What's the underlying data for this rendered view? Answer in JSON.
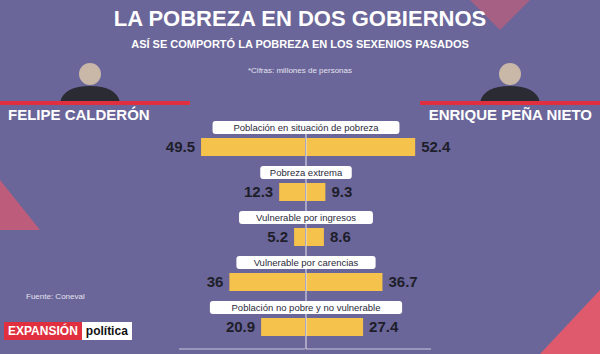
{
  "chart_data": {
    "type": "bar",
    "orientation": "horizontal",
    "title": "LA POBREZA EN DOS GOBIERNOS",
    "subtitle": "ASÍ SE COMPORTÓ LA POBREZA EN LOS SEXENIOS PASADOS",
    "note": "*Cifras: millones de personas",
    "source": "Fuente: Coneval",
    "brand": [
      "EXPANSIÓN",
      "política"
    ],
    "categories": [
      "Población en situación de pobreza",
      "Pobreza extrema",
      "Vulnerable por ingresos",
      "Vulnerable por carencias",
      "Población no pobre y no vulnerable"
    ],
    "series": [
      {
        "name": "FELIPE CALDERÓN",
        "color": "#f5c24b",
        "values": [
          49.5,
          12.3,
          5.2,
          36,
          20.9
        ]
      },
      {
        "name": "ENRIQUE PEÑA NIETO",
        "color": "#f5c24b",
        "values": [
          52.4,
          9.3,
          8.6,
          36.7,
          27.4
        ]
      }
    ],
    "xlim": [
      0,
      60
    ],
    "tick_labels": false,
    "data_labels": true,
    "grid": false
  }
}
